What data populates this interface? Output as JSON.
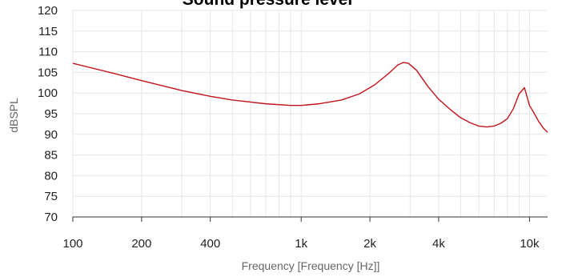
{
  "chart_data": {
    "type": "line",
    "title": "Sound pressure level",
    "xlabel": "Frequency [Frequency [Hz]]",
    "ylabel": "dBSPL",
    "x_scale": "log",
    "xlim": [
      100,
      12000
    ],
    "ylim": [
      70,
      120
    ],
    "x_ticks": [
      {
        "value": 100,
        "label": "100"
      },
      {
        "value": 200,
        "label": "200"
      },
      {
        "value": 400,
        "label": "400"
      },
      {
        "value": 1000,
        "label": "1k"
      },
      {
        "value": 2000,
        "label": "2k"
      },
      {
        "value": 4000,
        "label": "4k"
      },
      {
        "value": 10000,
        "label": "10k"
      }
    ],
    "y_ticks": [
      70,
      75,
      80,
      85,
      90,
      95,
      100,
      105,
      110,
      115,
      120
    ],
    "grid": true,
    "series": [
      {
        "color": "#c0141c",
        "x": [
          100,
          150,
          200,
          300,
          400,
          500,
          700,
          900,
          1000,
          1200,
          1500,
          1800,
          2100,
          2400,
          2650,
          2800,
          2950,
          3200,
          3600,
          4000,
          4500,
          5000,
          5500,
          6000,
          6500,
          7000,
          7500,
          8000,
          8500,
          9000,
          9500,
          10000,
          10500,
          11000,
          11500,
          12000
        ],
        "y": [
          107.2,
          104.8,
          103.0,
          100.6,
          99.2,
          98.3,
          97.4,
          97.0,
          97.0,
          97.4,
          98.3,
          99.8,
          102.0,
          104.6,
          106.8,
          107.4,
          107.2,
          105.5,
          101.5,
          98.5,
          96.0,
          94.0,
          92.8,
          92.0,
          91.8,
          92.0,
          92.7,
          93.8,
          96.2,
          99.8,
          101.3,
          97.0,
          95.0,
          93.0,
          91.5,
          90.5
        ]
      }
    ]
  }
}
